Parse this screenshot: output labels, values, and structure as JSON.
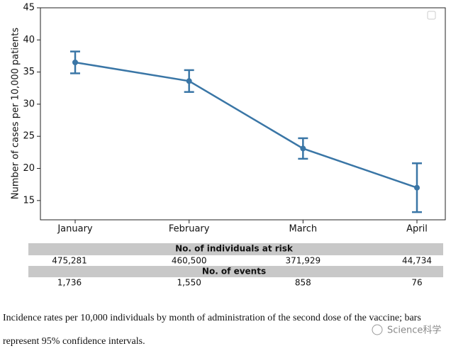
{
  "chart_data": {
    "type": "line",
    "ylabel": "Number of cases per 10,000 patients",
    "categories": [
      "January",
      "February",
      "March",
      "April"
    ],
    "values": [
      36.5,
      33.6,
      23.1,
      17.0
    ],
    "errors": [
      1.7,
      1.7,
      1.6,
      3.8
    ],
    "color": "#3a76a6",
    "ylim": [
      12,
      45
    ],
    "yticks": [
      15,
      20,
      25,
      30,
      35,
      40,
      45
    ],
    "grid": false
  },
  "table": {
    "sections": [
      {
        "header": "No. of individuals at risk",
        "values": [
          "475,281",
          "460,500",
          "371,929",
          "44,734"
        ]
      },
      {
        "header": "No. of events",
        "values": [
          "1,736",
          "1,550",
          "858",
          "76"
        ]
      }
    ]
  },
  "caption": [
    "Incidence rates per 10,000 individuals by month of administration of the second dose of the vaccine; bars",
    "represent 95% confidence intervals."
  ],
  "watermark": "Science科学"
}
